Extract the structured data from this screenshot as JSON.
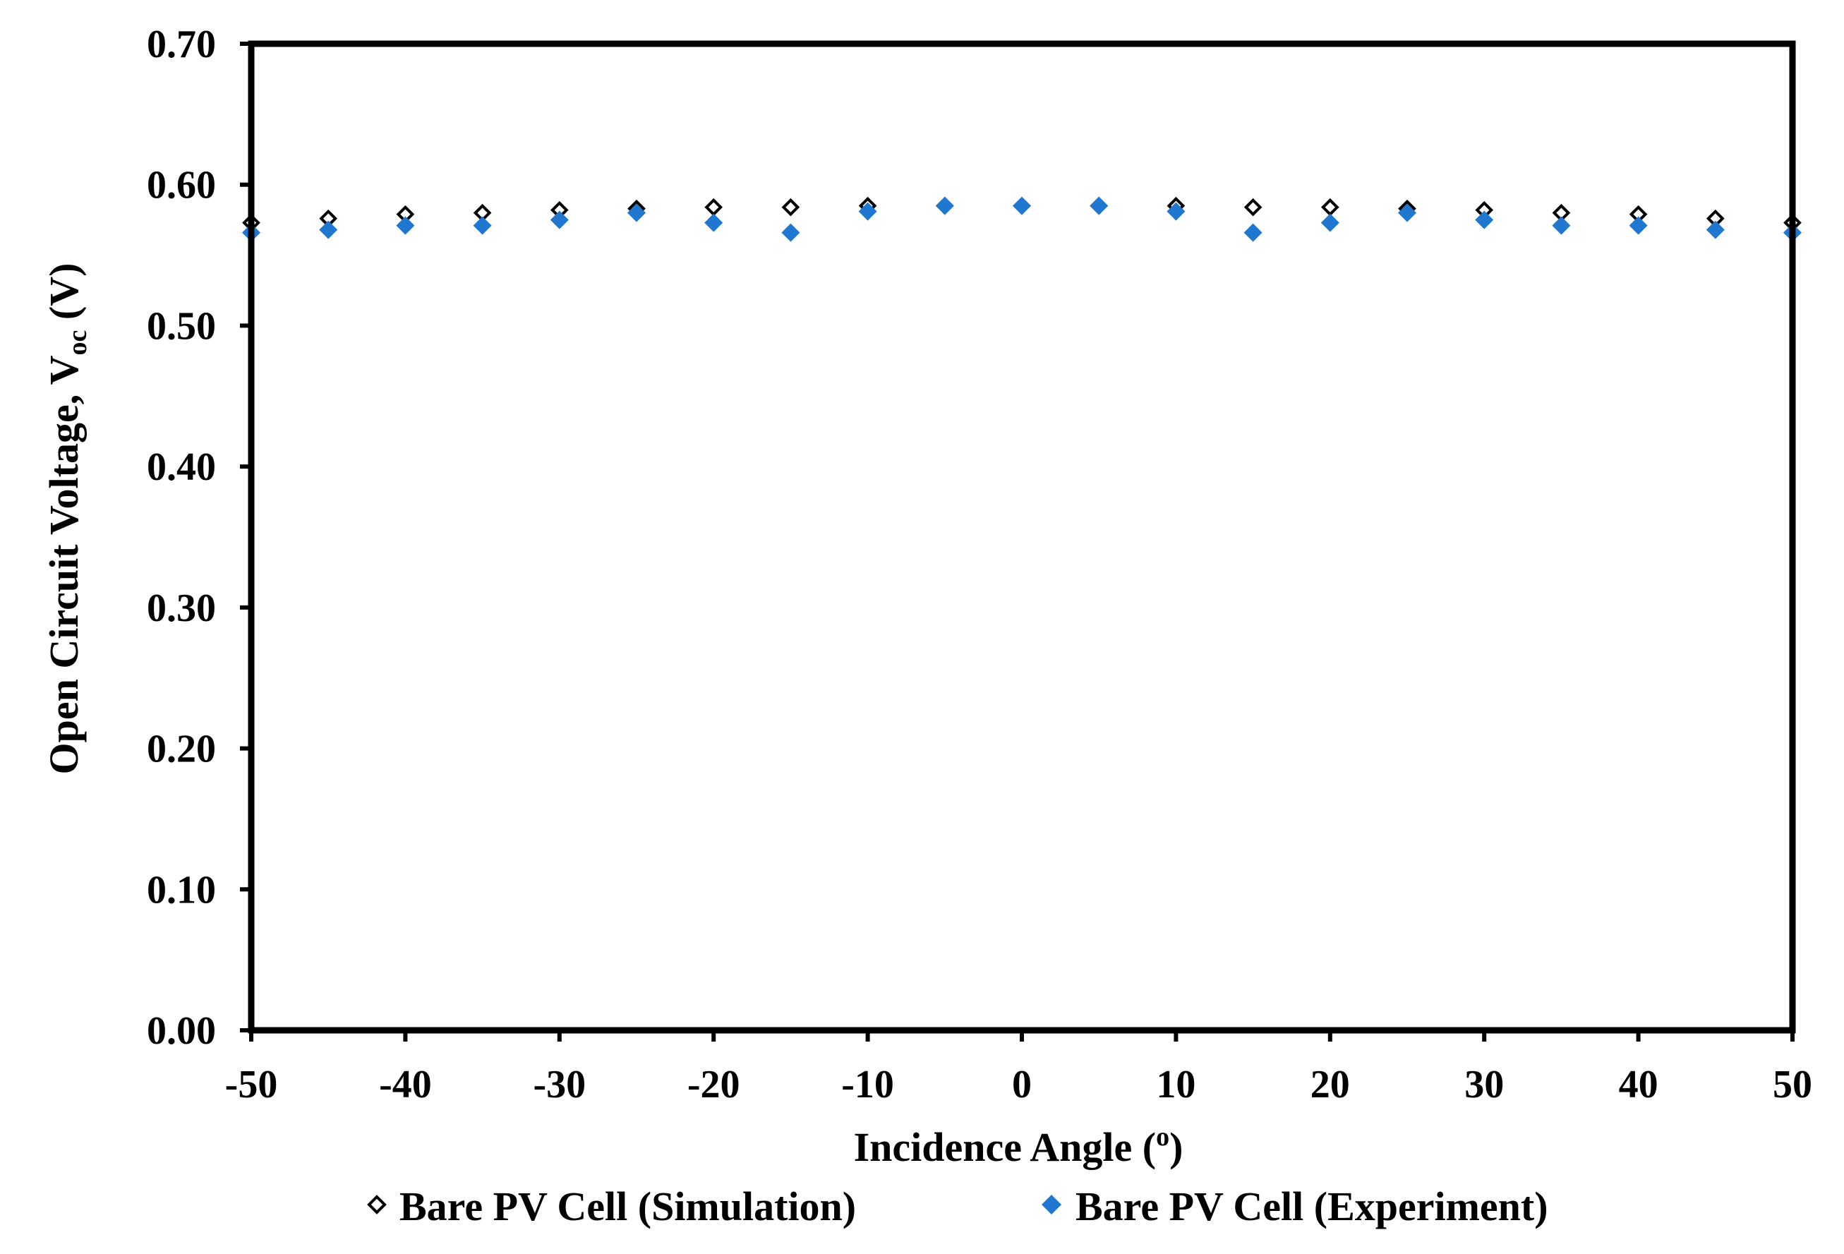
{
  "chart_data": {
    "type": "scatter",
    "title": "",
    "xlabel": "Incidence Angle (",
    "xlabel_sup": "o",
    "xlabel_end": ")",
    "ylabel": "Open Circuit Voltage, V",
    "ylabel_sub": "oc",
    "ylabel_end": " (V)",
    "xlim": [
      -50,
      50
    ],
    "ylim": [
      0,
      0.7
    ],
    "x_ticks": [
      -50,
      -40,
      -30,
      -20,
      -10,
      0,
      10,
      20,
      30,
      40,
      50
    ],
    "x_tick_labels": [
      "-50",
      "-40",
      "-30",
      "-20",
      "-10",
      "0",
      "10",
      "20",
      "30",
      "40",
      "50"
    ],
    "y_ticks": [
      0,
      0.1,
      0.2,
      0.3,
      0.4,
      0.5,
      0.6,
      0.7
    ],
    "y_tick_labels": [
      "0.00",
      "0.10",
      "0.20",
      "0.30",
      "0.40",
      "0.50",
      "0.60",
      "0.70"
    ],
    "grid": false,
    "legend_position": "bottom",
    "series": [
      {
        "name": "Bare PV Cell (Simulation)",
        "marker": "open-diamond",
        "color": "#000000",
        "x": [
          -50,
          -45,
          -40,
          -35,
          -30,
          -25,
          -20,
          -15,
          -10,
          -5,
          0,
          5,
          10,
          15,
          20,
          25,
          30,
          35,
          40,
          45,
          50
        ],
        "y": [
          0.573,
          0.576,
          0.579,
          0.58,
          0.582,
          0.583,
          0.584,
          0.584,
          0.585,
          0.585,
          0.585,
          0.585,
          0.585,
          0.584,
          0.584,
          0.583,
          0.582,
          0.58,
          0.579,
          0.576,
          0.573
        ]
      },
      {
        "name": "Bare PV Cell (Experiment)",
        "marker": "filled-diamond",
        "color": "#1f77d0",
        "x": [
          -50,
          -45,
          -40,
          -35,
          -30,
          -25,
          -20,
          -15,
          -10,
          -5,
          0,
          5,
          10,
          15,
          20,
          25,
          30,
          35,
          40,
          45,
          50
        ],
        "y": [
          0.566,
          0.568,
          0.571,
          0.571,
          0.575,
          0.58,
          0.573,
          0.566,
          0.581,
          0.585,
          0.585,
          0.585,
          0.581,
          0.566,
          0.573,
          0.58,
          0.575,
          0.571,
          0.571,
          0.568,
          0.566
        ]
      }
    ]
  }
}
